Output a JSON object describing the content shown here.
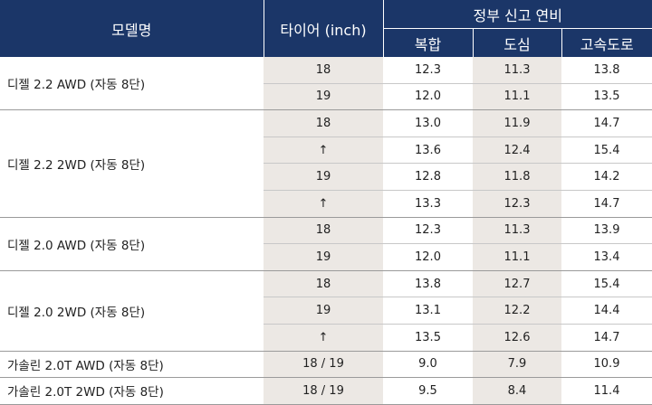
{
  "header": {
    "model": "모델명",
    "tire": "타이어 (inch)",
    "fuel_group": "정부 신고 연비",
    "combined": "복합",
    "city": "도심",
    "highway": "고속도로"
  },
  "groups": [
    {
      "model": "디젤 2.2 AWD (자동 8단)",
      "rows": [
        {
          "tire": "18",
          "combined": "12.3",
          "city": "11.3",
          "highway": "13.8"
        },
        {
          "tire": "19",
          "combined": "12.0",
          "city": "11.1",
          "highway": "13.5"
        }
      ]
    },
    {
      "model": "디젤 2.2 2WD (자동 8단)",
      "rows": [
        {
          "tire": "18",
          "combined": "13.0",
          "city": "11.9",
          "highway": "14.7"
        },
        {
          "tire": "↑",
          "combined": "13.6",
          "city": "12.4",
          "highway": "15.4"
        },
        {
          "tire": "19",
          "combined": "12.8",
          "city": "11.8",
          "highway": "14.2"
        },
        {
          "tire": "↑",
          "combined": "13.3",
          "city": "12.3",
          "highway": "14.7"
        }
      ]
    },
    {
      "model": "디젤 2.0 AWD (자동 8단)",
      "rows": [
        {
          "tire": "18",
          "combined": "12.3",
          "city": "11.3",
          "highway": "13.9"
        },
        {
          "tire": "19",
          "combined": "12.0",
          "city": "11.1",
          "highway": "13.4"
        }
      ]
    },
    {
      "model": "디젤 2.0 2WD (자동 8단)",
      "rows": [
        {
          "tire": "18",
          "combined": "13.8",
          "city": "12.7",
          "highway": "15.4"
        },
        {
          "tire": "19",
          "combined": "13.1",
          "city": "12.2",
          "highway": "14.4"
        },
        {
          "tire": "↑",
          "combined": "13.5",
          "city": "12.6",
          "highway": "14.7"
        }
      ]
    },
    {
      "model": "가솔린 2.0T AWD (자동 8단)",
      "rows": [
        {
          "tire": "18 / 19",
          "combined": "9.0",
          "city": "7.9",
          "highway": "10.9"
        }
      ]
    },
    {
      "model": "가솔린 2.0T 2WD (자동 8단)",
      "rows": [
        {
          "tire": "18 / 19",
          "combined": "9.5",
          "city": "8.4",
          "highway": "11.4"
        }
      ]
    }
  ]
}
